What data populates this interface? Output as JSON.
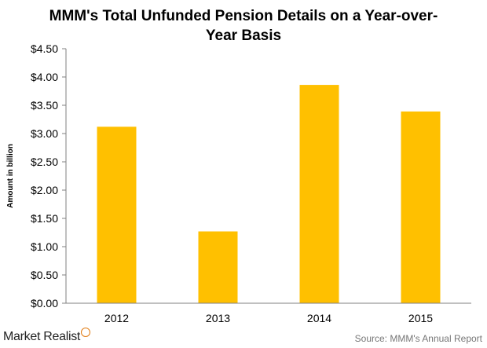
{
  "chart_data": {
    "type": "bar",
    "title_line1": "MMM's Total Unfunded Pension Details on a Year-over-",
    "title_line2": "Year Basis",
    "xlabel": "",
    "ylabel": "Amount in billion",
    "categories": [
      "2012",
      "2013",
      "2014",
      "2015"
    ],
    "values": [
      3.12,
      1.27,
      3.86,
      3.39
    ],
    "ylim": [
      0,
      4.5
    ],
    "yticks": [
      0,
      0.5,
      1.0,
      1.5,
      2.0,
      2.5,
      3.0,
      3.5,
      4.0,
      4.5
    ],
    "ytick_labels": [
      "$0.00",
      "$0.50",
      "$1.00",
      "$1.50",
      "$2.00",
      "$2.50",
      "$3.00",
      "$3.50",
      "$4.00",
      "$4.50"
    ],
    "bar_color": "#ffc000",
    "grid": false,
    "legend": "none"
  },
  "footer": {
    "brand": "Market Realist",
    "brand_icon": "magnifier-icon",
    "source": "Source: MMM's Annual Report"
  }
}
